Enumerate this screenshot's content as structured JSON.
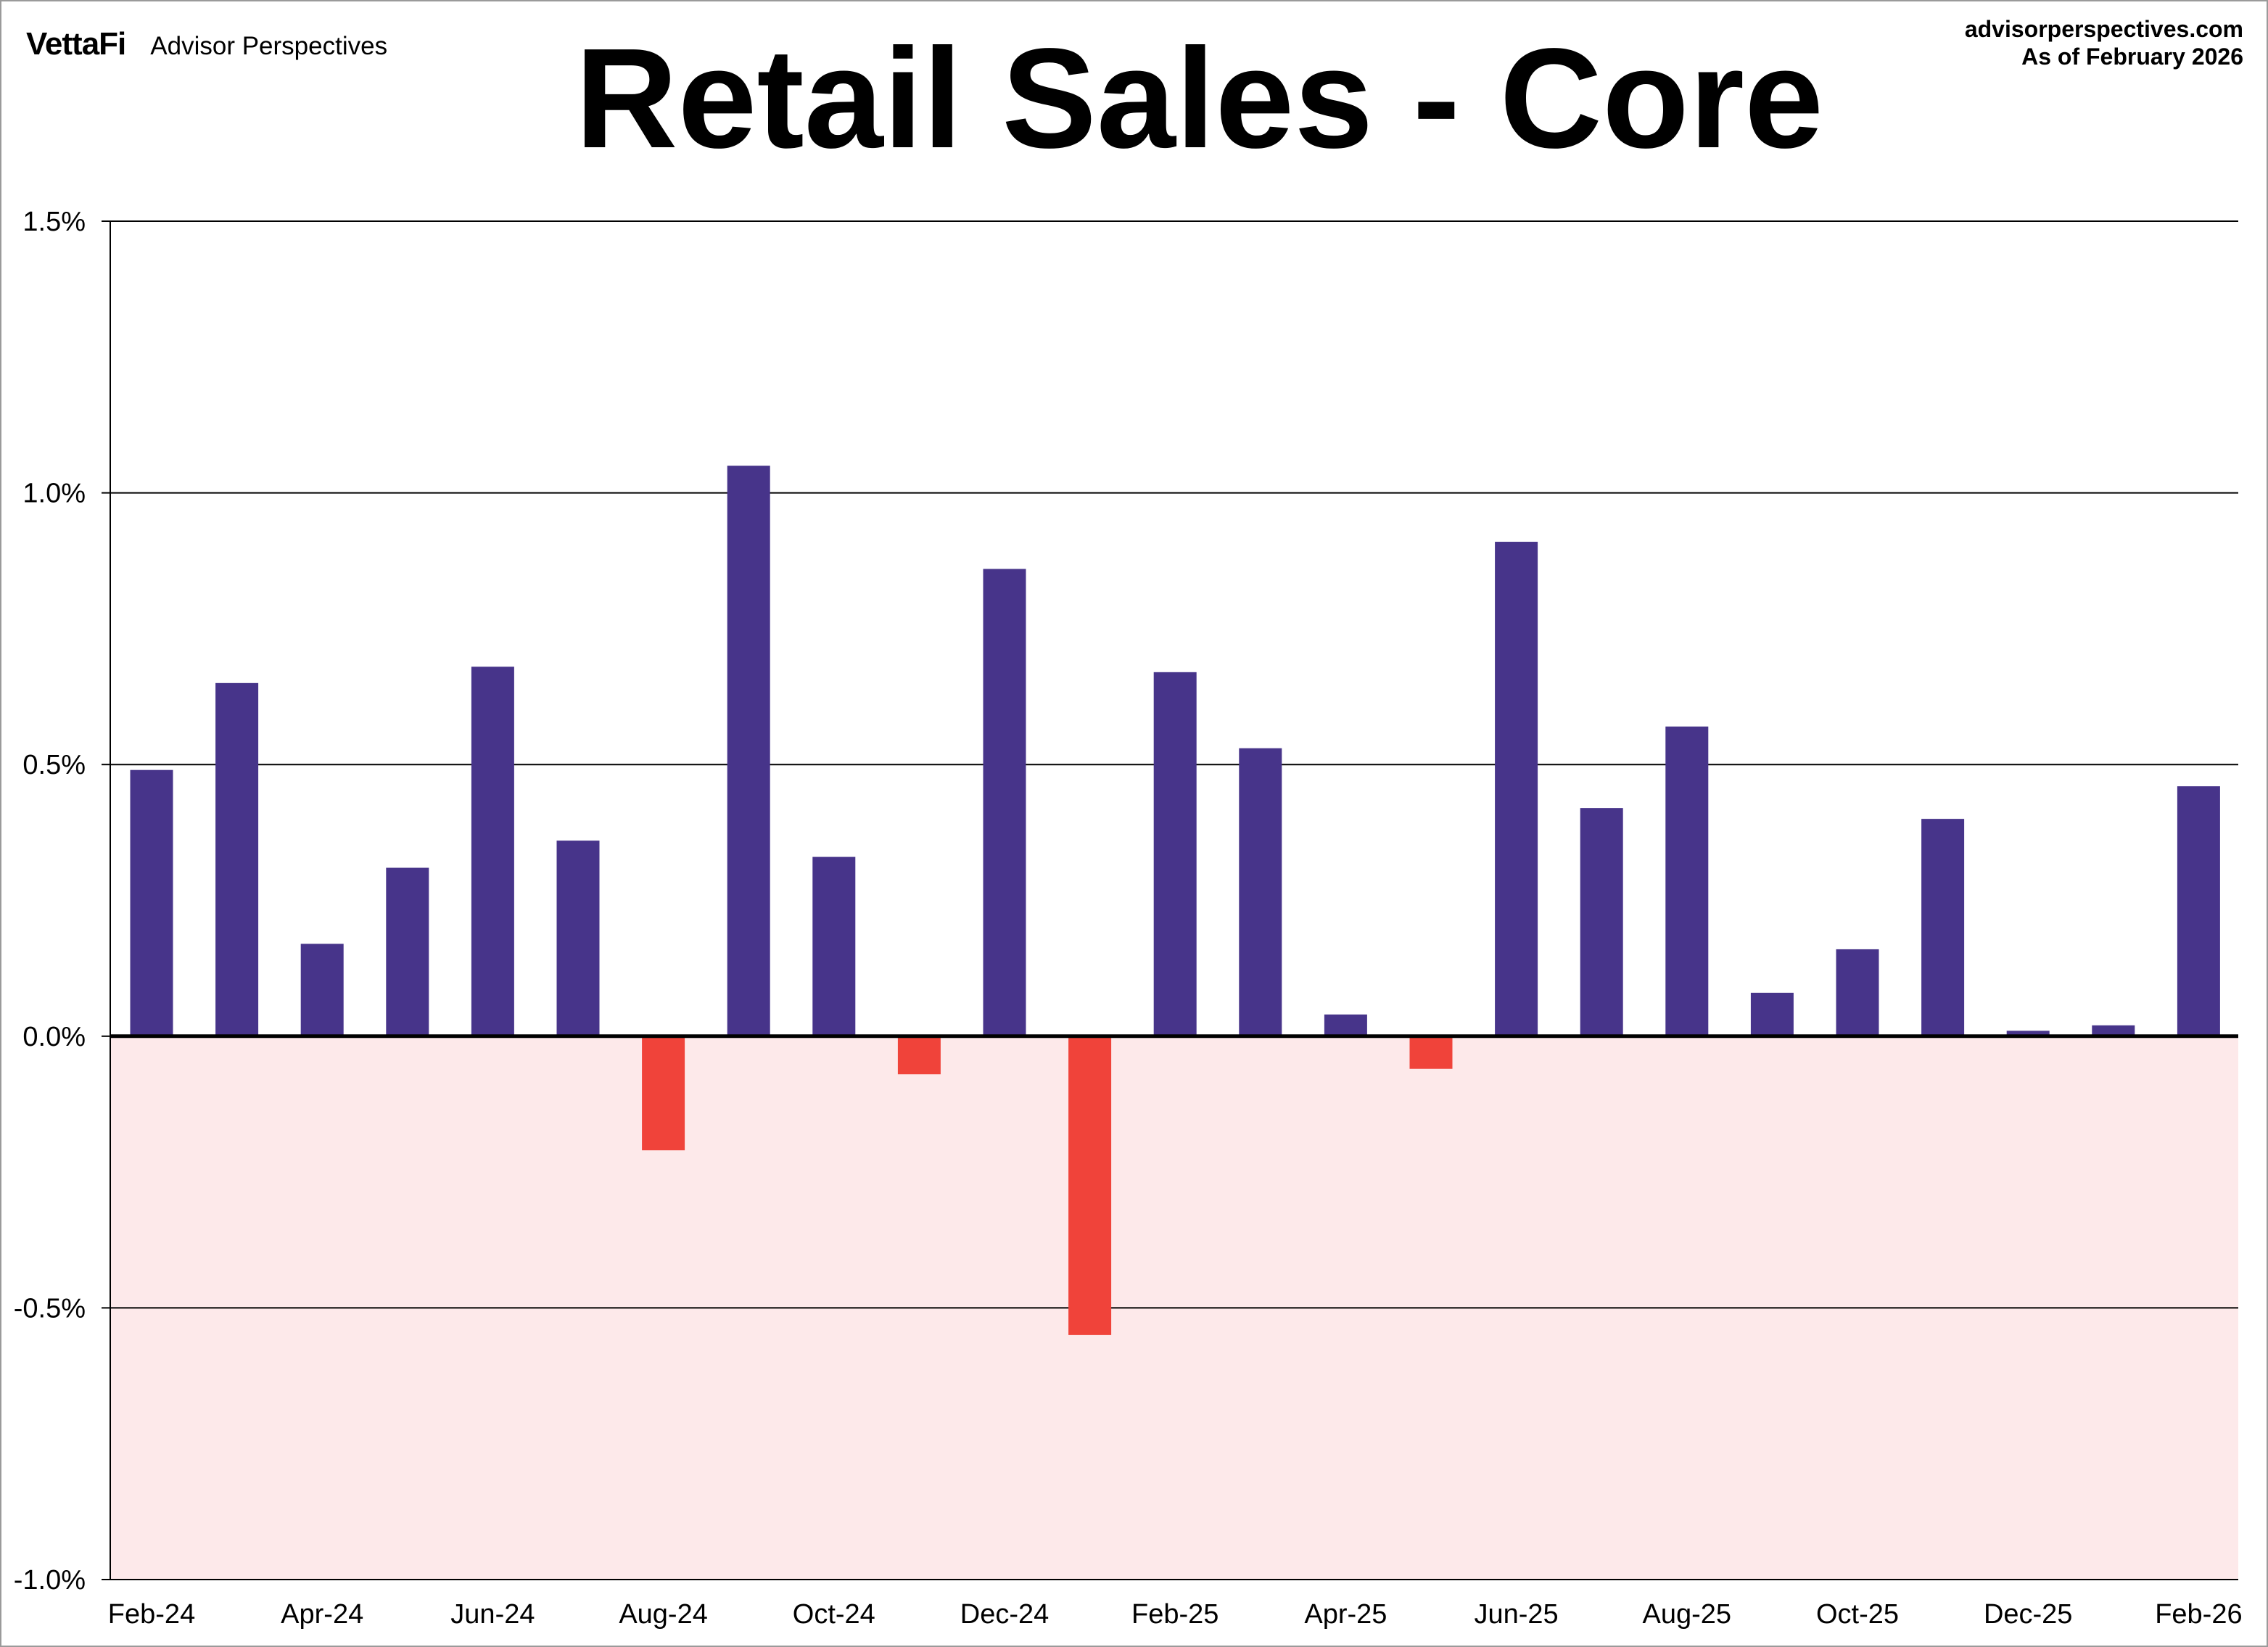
{
  "header": {
    "brand": "VettaFi",
    "brand_sub": "Advisor Perspectives",
    "source_site": "advisorperspectives.com",
    "as_of": "As of February 2026"
  },
  "chart_data": {
    "type": "bar",
    "title": "Retail Sales - Core",
    "xlabel": "",
    "ylabel": "",
    "ylim": [
      -1.0,
      1.5
    ],
    "yticks": [
      1.5,
      1.0,
      0.5,
      0.0,
      -0.5,
      -1.0
    ],
    "ytick_labels": [
      "1.5%",
      "1.0%",
      "0.5%",
      "0.0%",
      "-0.5%",
      "-1.0%"
    ],
    "categories": [
      "Feb-24",
      "Mar-24",
      "Apr-24",
      "May-24",
      "Jun-24",
      "Jul-24",
      "Aug-24",
      "Sep-24",
      "Oct-24",
      "Nov-24",
      "Dec-24",
      "Jan-25",
      "Feb-25",
      "Mar-25",
      "Apr-25",
      "May-25",
      "Jun-25",
      "Jul-25",
      "Aug-25",
      "Sep-25",
      "Oct-25",
      "Nov-25",
      "Dec-25",
      "Jan-26",
      "Feb-26"
    ],
    "xtick_labels": [
      "Feb-24",
      "Apr-24",
      "Jun-24",
      "Aug-24",
      "Oct-24",
      "Dec-24",
      "Feb-25",
      "Apr-25",
      "Jun-25",
      "Aug-25",
      "Oct-25",
      "Dec-25",
      "Feb-26"
    ],
    "values": [
      0.49,
      0.65,
      0.17,
      0.31,
      0.68,
      0.36,
      -0.21,
      1.05,
      0.33,
      -0.07,
      0.86,
      -0.55,
      0.67,
      0.53,
      0.04,
      -0.06,
      0.91,
      0.42,
      0.57,
      0.08,
      0.16,
      0.4,
      0.01,
      0.02,
      0.46
    ],
    "colors": {
      "positive": "#47348a",
      "negative": "#f0433a",
      "negative_region": "#fde9ea",
      "grid": "#000000"
    },
    "grid": true
  }
}
